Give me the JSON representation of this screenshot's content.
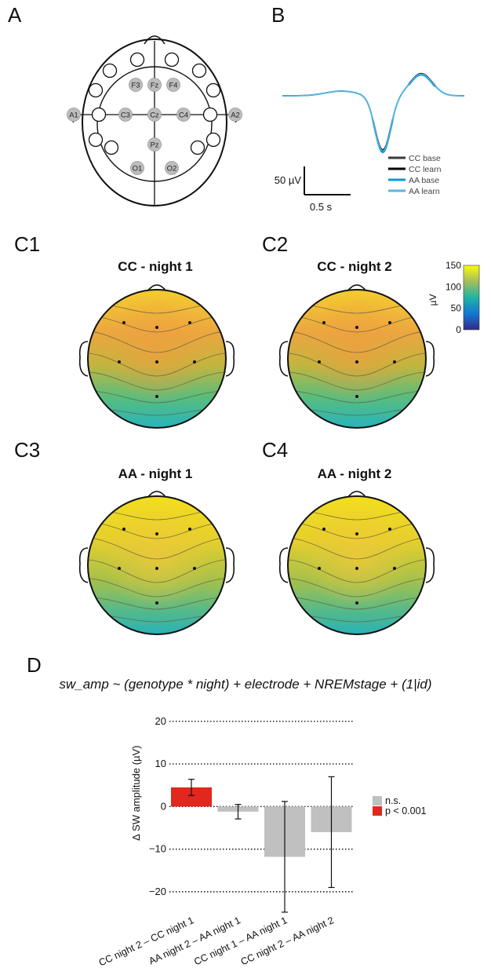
{
  "panels": {
    "a": "A",
    "b": "B",
    "c1": "C1",
    "c2": "C2",
    "c3": "C3",
    "c4": "C4",
    "d": "D"
  },
  "electrodes": [
    {
      "label": "F3"
    },
    {
      "label": "Fz"
    },
    {
      "label": "F4"
    },
    {
      "label": "A1"
    },
    {
      "label": "C3"
    },
    {
      "label": "Cz"
    },
    {
      "label": "C4"
    },
    {
      "label": "A2"
    },
    {
      "label": "Pz"
    },
    {
      "label": "O1"
    },
    {
      "label": "O2"
    }
  ],
  "waveform": {
    "scale_amplitude": "50 µV",
    "scale_time": "0.5 s",
    "legend": [
      {
        "name": "CC base",
        "color": "#3a3a3a"
      },
      {
        "name": "CC learn",
        "color": "#000000"
      },
      {
        "name": "AA base",
        "color": "#0a9ad8"
      },
      {
        "name": "AA learn",
        "color": "#58b6e4"
      }
    ]
  },
  "topomaps": [
    {
      "title": "CC -  night 1"
    },
    {
      "title": "CC - night 2"
    },
    {
      "title": "AA -  night 1"
    },
    {
      "title": "AA - night 2"
    }
  ],
  "colorbar": {
    "label": "µV",
    "ticks": [
      "150",
      "100",
      "50",
      "0"
    ],
    "range": [
      0,
      150
    ]
  },
  "formula": "sw_amp ~ (genotype * night) + electrode + NREMstage + (1|id)",
  "chart_data": {
    "type": "bar",
    "title": "",
    "xlabel": "",
    "ylabel": "∆ SW amplitude (µV)",
    "ylim": [
      -25,
      22
    ],
    "yticks": [
      -20,
      -10,
      0,
      10,
      20
    ],
    "grid": "dotted horizontal at ticks",
    "categories": [
      "CC night 2 – CC night 1",
      "AA night 2 – AA night 1",
      "CC night 1 – AA night 1",
      "CC night 2 – AA night 2"
    ],
    "values": [
      4.5,
      -1.2,
      -11.8,
      -6.0
    ],
    "error_low": [
      2.6,
      -2.9,
      -24.8,
      -19.0
    ],
    "error_high": [
      6.4,
      0.5,
      1.2,
      7.0
    ],
    "bar_colors": [
      "#e0281e",
      "#c0c0c0",
      "#c0c0c0",
      "#c0c0c0"
    ],
    "legend": [
      {
        "name": "n.s.",
        "color": "#c0c0c0"
      },
      {
        "name": "p < 0.001",
        "color": "#e0281e"
      }
    ],
    "legend_position": "right"
  }
}
